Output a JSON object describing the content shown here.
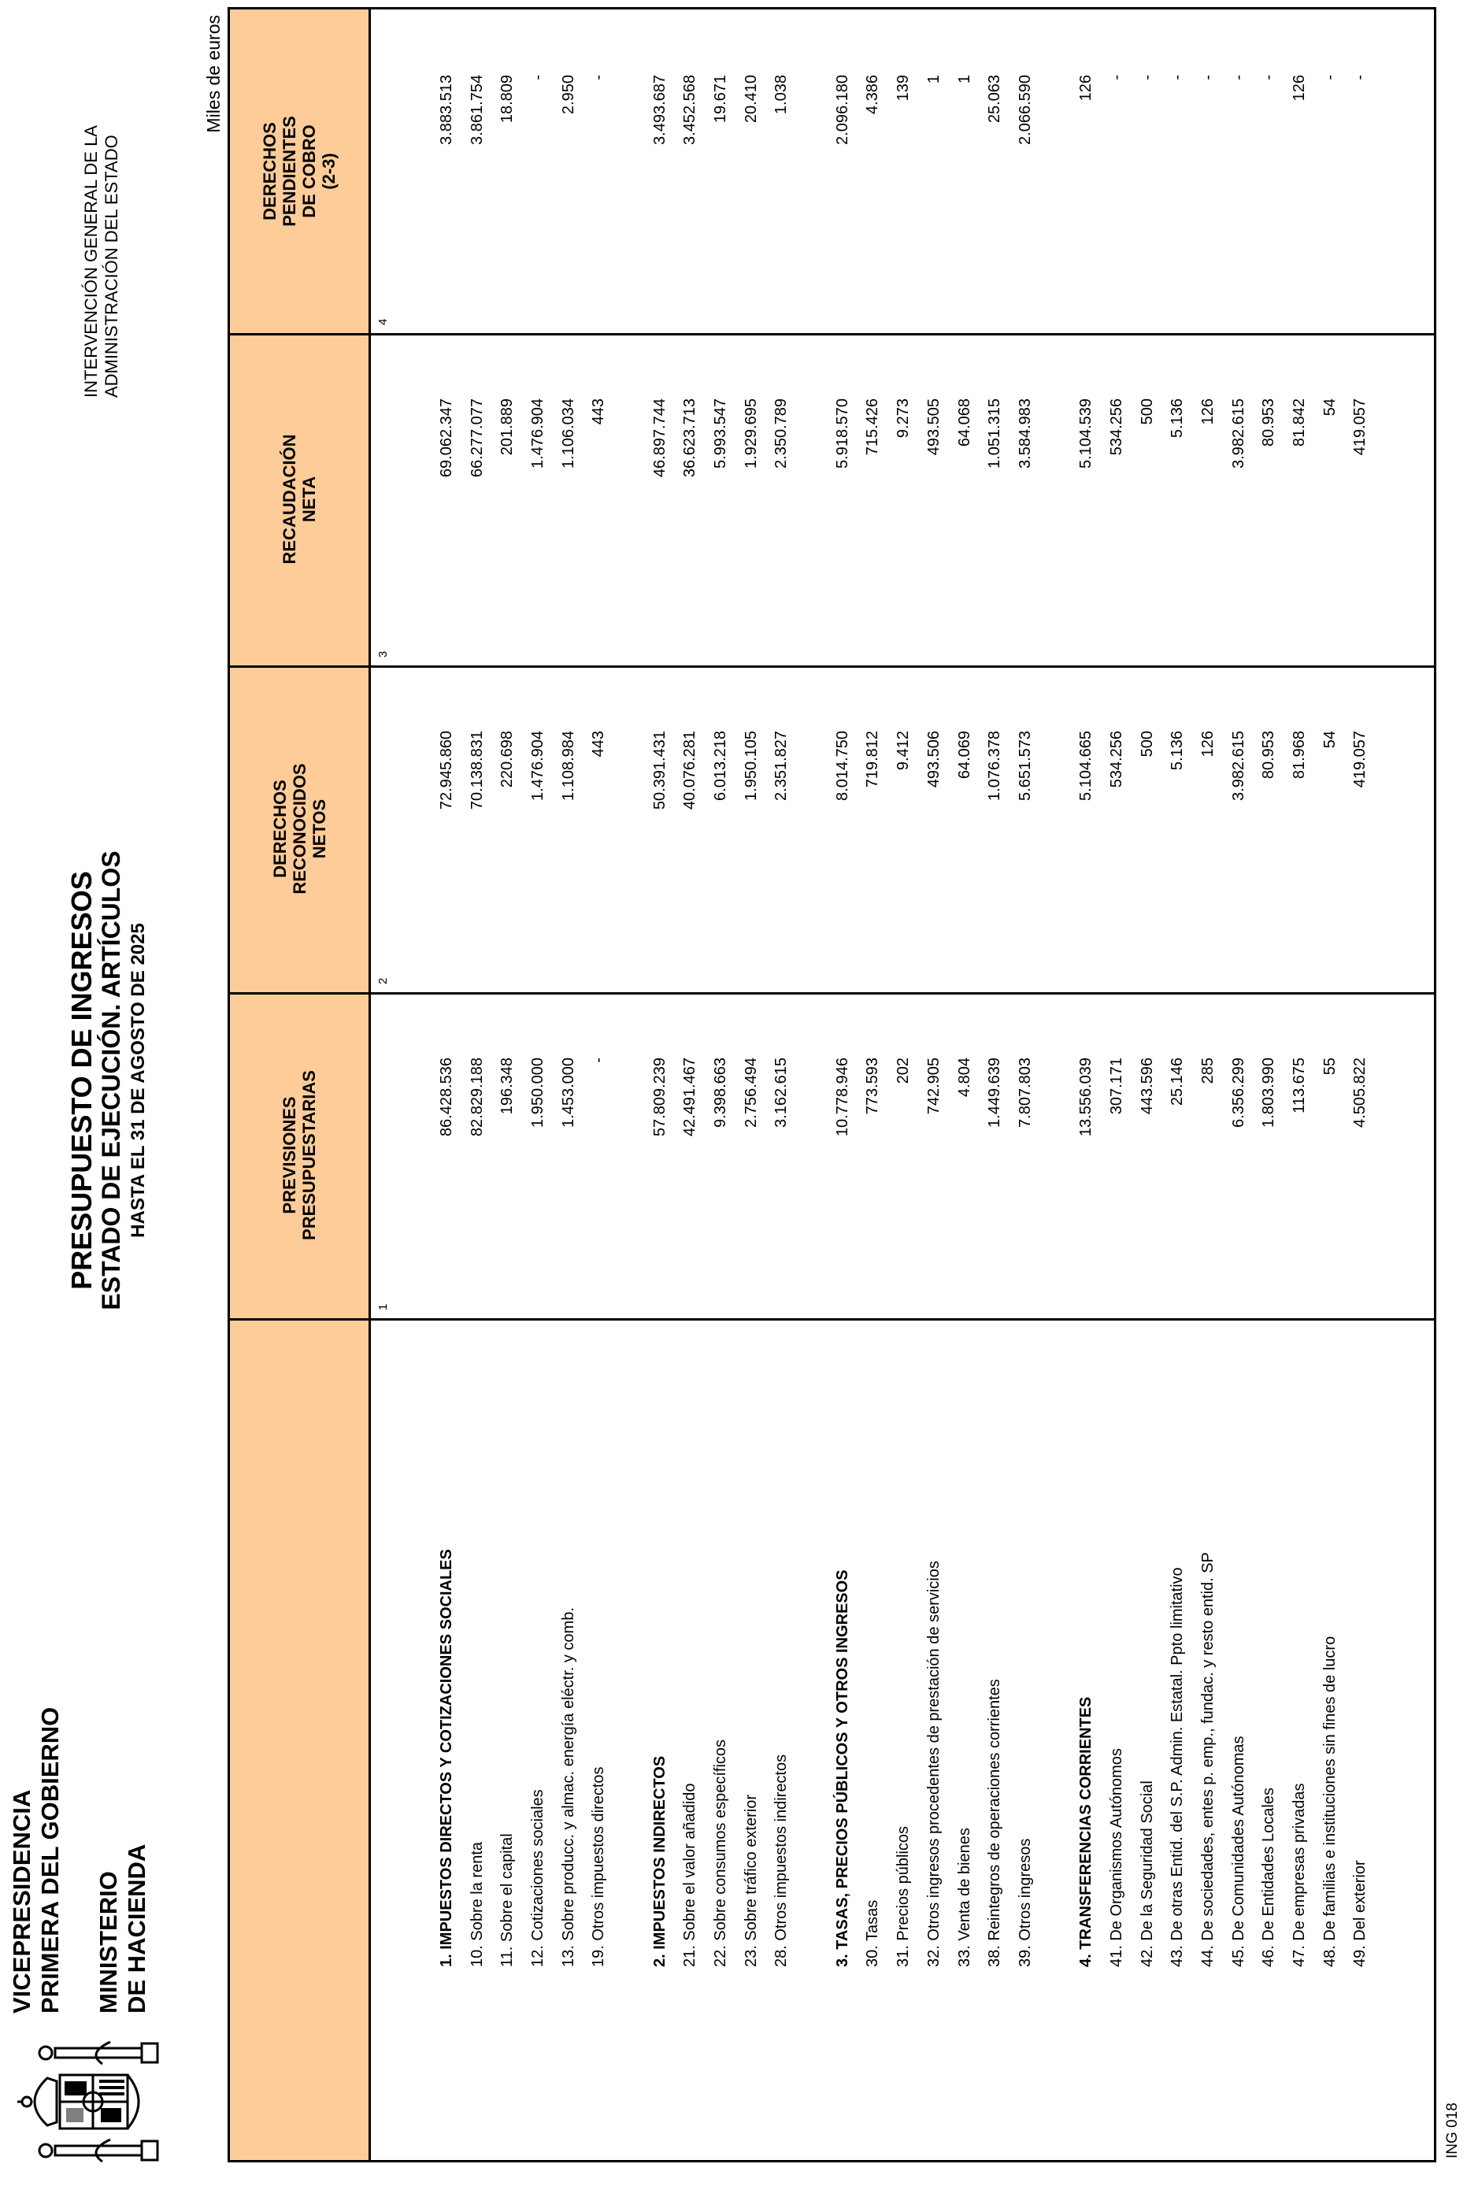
{
  "header": {
    "org_line1": "VICEPRESIDENCIA",
    "org_line2": "PRIMERA DEL GOBIERNO",
    "ministry_line1": "MINISTERIO",
    "ministry_line2": "DE HACIENDA",
    "igae_line1": "INTERVENCIÓN GENERAL DE LA",
    "igae_line2": "ADMINISTRACIÓN DEL ESTADO",
    "logo": "coat-of-arms-of-spain"
  },
  "title": {
    "line1": "PRESUPUESTO DE INGRESOS",
    "line2": "ESTADO DE EJECUCIÓN. ARTÍCULOS",
    "line3": "HASTA EL 31 DE AGOSTO DE 2025"
  },
  "units": "Miles de euros",
  "footer_code": "ING 018",
  "colors": {
    "header_bg": "#FECC99",
    "border": "#000000"
  },
  "table": {
    "columns": [
      {
        "label_lines": [
          "PREVISIONES",
          "PRESUPUESTARIAS"
        ],
        "number": "1"
      },
      {
        "label_lines": [
          "DERECHOS",
          "RECONOCIDOS",
          "NETOS"
        ],
        "number": "2"
      },
      {
        "label_lines": [
          "RECAUDACIÓN",
          "NETA"
        ],
        "number": "3"
      },
      {
        "label_lines": [
          "DERECHOS",
          "PENDIENTES",
          "DE COBRO",
          "(2-3)"
        ],
        "number": "4"
      }
    ],
    "groups": [
      {
        "header": {
          "label": "1. IMPUESTOS DIRECTOS Y COTIZACIONES SOCIALES",
          "values": [
            "86.428.536",
            "72.945.860",
            "69.062.347",
            "3.883.513"
          ]
        },
        "items": [
          {
            "label": "10. Sobre la renta",
            "values": [
              "82.829.188",
              "70.138.831",
              "66.277.077",
              "3.861.754"
            ]
          },
          {
            "label": "11. Sobre el capital",
            "values": [
              "196.348",
              "220.698",
              "201.889",
              "18.809"
            ]
          },
          {
            "label": "12. Cotizaciones sociales",
            "values": [
              "1.950.000",
              "1.476.904",
              "1.476.904",
              "-"
            ]
          },
          {
            "label": "13. Sobre producc. y almac. energía eléctr. y comb.",
            "values": [
              "1.453.000",
              "1.108.984",
              "1.106.034",
              "2.950"
            ]
          },
          {
            "label": "19. Otros impuestos directos",
            "values": [
              "-",
              "443",
              "443",
              "-"
            ]
          }
        ]
      },
      {
        "header": {
          "label": "2. IMPUESTOS INDIRECTOS",
          "values": [
            "57.809.239",
            "50.391.431",
            "46.897.744",
            "3.493.687"
          ]
        },
        "items": [
          {
            "label": "21. Sobre el valor añadido",
            "values": [
              "42.491.467",
              "40.076.281",
              "36.623.713",
              "3.452.568"
            ]
          },
          {
            "label": "22. Sobre consumos específicos",
            "values": [
              "9.398.663",
              "6.013.218",
              "5.993.547",
              "19.671"
            ]
          },
          {
            "label": "23. Sobre tráfico exterior",
            "values": [
              "2.756.494",
              "1.950.105",
              "1.929.695",
              "20.410"
            ]
          },
          {
            "label": "28. Otros impuestos indirectos",
            "values": [
              "3.162.615",
              "2.351.827",
              "2.350.789",
              "1.038"
            ]
          }
        ]
      },
      {
        "header": {
          "label": "3. TASAS, PRECIOS PÚBLICOS Y OTROS INGRESOS",
          "values": [
            "10.778.946",
            "8.014.750",
            "5.918.570",
            "2.096.180"
          ]
        },
        "items": [
          {
            "label": "30. Tasas",
            "values": [
              "773.593",
              "719.812",
              "715.426",
              "4.386"
            ]
          },
          {
            "label": "31. Precios públicos",
            "values": [
              "202",
              "9.412",
              "9.273",
              "139"
            ]
          },
          {
            "label": "32. Otros ingresos procedentes de prestación de servicios",
            "values": [
              "742.905",
              "493.506",
              "493.505",
              "1"
            ]
          },
          {
            "label": "33. Venta de bienes",
            "values": [
              "4.804",
              "64.069",
              "64.068",
              "1"
            ]
          },
          {
            "label": "38. Reintegros de operaciones corrientes",
            "values": [
              "1.449.639",
              "1.076.378",
              "1.051.315",
              "25.063"
            ]
          },
          {
            "label": "39. Otros ingresos",
            "values": [
              "7.807.803",
              "5.651.573",
              "3.584.983",
              "2.066.590"
            ]
          }
        ]
      },
      {
        "header": {
          "label": "4. TRANSFERENCIAS CORRIENTES",
          "values": [
            "13.556.039",
            "5.104.665",
            "5.104.539",
            "126"
          ]
        },
        "items": [
          {
            "label": "41. De Organismos Autónomos",
            "values": [
              "307.171",
              "534.256",
              "534.256",
              "-"
            ]
          },
          {
            "label": "42. De la Seguridad Social",
            "values": [
              "443.596",
              "500",
              "500",
              "-"
            ]
          },
          {
            "label": "43. De otras Entid. del S.P. Admin. Estatal. Ppto limitativo",
            "values": [
              "25.146",
              "5.136",
              "5.136",
              "-"
            ]
          },
          {
            "label": "44. De sociedades, entes p. emp., fundac. y resto entid. SP",
            "values": [
              "285",
              "126",
              "126",
              "-"
            ]
          },
          {
            "label": "45. De Comunidades Autónomas",
            "values": [
              "6.356.299",
              "3.982.615",
              "3.982.615",
              "-"
            ]
          },
          {
            "label": "46. De Entidades Locales",
            "values": [
              "1.803.990",
              "80.953",
              "80.953",
              "-"
            ]
          },
          {
            "label": "47. De empresas privadas",
            "values": [
              "113.675",
              "81.968",
              "81.842",
              "126"
            ]
          },
          {
            "label": "48. De familias e instituciones sin fines de lucro",
            "values": [
              "55",
              "54",
              "54",
              "-"
            ]
          },
          {
            "label": "49. Del exterior",
            "values": [
              "4.505.822",
              "419.057",
              "419.057",
              "-"
            ]
          }
        ]
      }
    ]
  }
}
